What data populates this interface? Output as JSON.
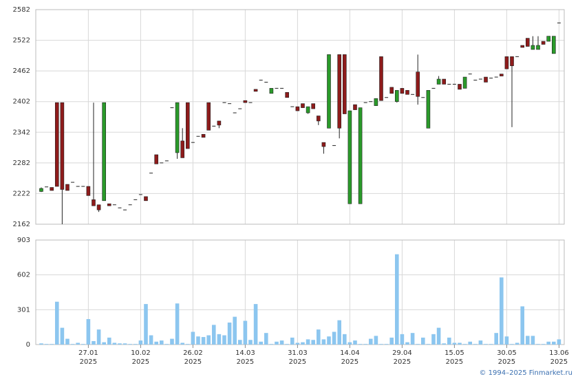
{
  "chart_data": [
    {
      "type": "candlestick",
      "up_color": "#2a9a2a",
      "down_color": "#8e1b1b",
      "grid": true,
      "xlim": [
        -1.05,
        100
      ],
      "ylim": [
        2162,
        2582
      ],
      "yticks": [
        2162,
        2222,
        2282,
        2342,
        2402,
        2462,
        2522,
        2582
      ],
      "open": [
        2226,
        2235,
        2234,
        2400,
        2400,
        2240,
        2244,
        2236,
        2236,
        2236,
        2210,
        2200,
        2208,
        2202,
        2200,
        2194,
        2190,
        2200,
        2210,
        2220,
        2216,
        2262,
        2298,
        2282,
        2286,
        2390,
        2302,
        2325,
        2400,
        2322,
        2334,
        2338,
        2400,
        2354,
        2364,
        2400,
        2398,
        2380,
        2388,
        2404,
        2400,
        2426,
        2444,
        2440,
        2418,
        2428,
        2428,
        2420,
        2392,
        2392,
        2398,
        2380,
        2398,
        2374,
        2322,
        2350,
        2316,
        2494,
        2494,
        2202,
        2396,
        2202,
        2400,
        2402,
        2394,
        2490,
        2410,
        2430,
        2402,
        2428,
        2424,
        2416,
        2460,
        2410,
        2350,
        2428,
        2436,
        2446,
        2436,
        2436,
        2436,
        2428,
        2456,
        2444,
        2446,
        2450,
        2448,
        2450,
        2456,
        2490,
        2490,
        2490,
        2512,
        2526,
        2504,
        2504,
        2520,
        2520,
        2496,
        2556
      ],
      "high": [
        2234,
        2235,
        2234,
        2400,
        2400,
        2240,
        2244,
        2236,
        2236,
        2236,
        2400,
        2200,
        2400,
        2202,
        2200,
        2194,
        2190,
        2200,
        2210,
        2220,
        2216,
        2262,
        2298,
        2282,
        2286,
        2390,
        2400,
        2350,
        2400,
        2322,
        2334,
        2338,
        2400,
        2354,
        2364,
        2400,
        2398,
        2380,
        2388,
        2404,
        2400,
        2426,
        2444,
        2440,
        2428,
        2428,
        2428,
        2420,
        2392,
        2392,
        2398,
        2392,
        2398,
        2374,
        2322,
        2494,
        2316,
        2494,
        2494,
        2384,
        2396,
        2390,
        2400,
        2402,
        2408,
        2490,
        2410,
        2430,
        2424,
        2428,
        2424,
        2416,
        2494,
        2410,
        2424,
        2428,
        2452,
        2446,
        2436,
        2436,
        2436,
        2450,
        2456,
        2444,
        2446,
        2450,
        2448,
        2450,
        2456,
        2490,
        2490,
        2490,
        2512,
        2526,
        2530,
        2530,
        2520,
        2530,
        2530,
        2556
      ],
      "low": [
        2225,
        2235,
        2228,
        2236,
        2162,
        2228,
        2244,
        2236,
        2236,
        2218,
        2198,
        2186,
        2208,
        2198,
        2200,
        2194,
        2190,
        2200,
        2210,
        2220,
        2208,
        2262,
        2280,
        2282,
        2286,
        2390,
        2290,
        2292,
        2310,
        2322,
        2334,
        2332,
        2346,
        2354,
        2350,
        2400,
        2398,
        2380,
        2388,
        2400,
        2400,
        2422,
        2444,
        2440,
        2418,
        2428,
        2428,
        2410,
        2392,
        2384,
        2390,
        2378,
        2388,
        2356,
        2300,
        2350,
        2316,
        2330,
        2378,
        2202,
        2386,
        2202,
        2400,
        2402,
        2394,
        2404,
        2410,
        2418,
        2400,
        2418,
        2416,
        2416,
        2396,
        2410,
        2350,
        2428,
        2436,
        2436,
        2436,
        2436,
        2426,
        2428,
        2456,
        2444,
        2446,
        2440,
        2448,
        2450,
        2452,
        2466,
        2352,
        2490,
        2508,
        2510,
        2504,
        2504,
        2514,
        2520,
        2496,
        2556
      ],
      "close": [
        2232,
        2235,
        2228,
        2236,
        2230,
        2228,
        2244,
        2236,
        2236,
        2218,
        2198,
        2190,
        2400,
        2198,
        2200,
        2194,
        2190,
        2200,
        2210,
        2220,
        2208,
        2262,
        2280,
        2282,
        2286,
        2390,
        2400,
        2292,
        2310,
        2322,
        2334,
        2332,
        2346,
        2354,
        2356,
        2400,
        2398,
        2380,
        2388,
        2400,
        2400,
        2422,
        2444,
        2440,
        2428,
        2428,
        2428,
        2410,
        2392,
        2384,
        2390,
        2392,
        2388,
        2364,
        2314,
        2494,
        2316,
        2350,
        2378,
        2384,
        2386,
        2390,
        2400,
        2402,
        2408,
        2404,
        2410,
        2418,
        2424,
        2418,
        2416,
        2416,
        2412,
        2410,
        2424,
        2428,
        2446,
        2436,
        2436,
        2436,
        2426,
        2450,
        2456,
        2444,
        2446,
        2440,
        2448,
        2450,
        2452,
        2466,
        2472,
        2490,
        2508,
        2510,
        2512,
        2512,
        2514,
        2530,
        2530,
        2556
      ]
    },
    {
      "type": "bar",
      "color": "#8cc6ef",
      "grid": true,
      "xlim": [
        -1.05,
        100
      ],
      "ylim": [
        0,
        903
      ],
      "yticks": [
        0,
        301,
        602,
        903
      ],
      "xticks": [
        {
          "value": 9,
          "label": "27.01",
          "year": "2025"
        },
        {
          "value": 19,
          "label": "10.02",
          "year": "2025"
        },
        {
          "value": 29,
          "label": "26.02",
          "year": "2025"
        },
        {
          "value": 39,
          "label": "14.03",
          "year": "2025"
        },
        {
          "value": 49,
          "label": "31.03",
          "year": "2025"
        },
        {
          "value": 59,
          "label": "14.04",
          "year": "2025"
        },
        {
          "value": 69,
          "label": "29.04",
          "year": "2025"
        },
        {
          "value": 79,
          "label": "15.05",
          "year": "2025"
        },
        {
          "value": 89,
          "label": "30.05",
          "year": "2025"
        },
        {
          "value": 99,
          "label": "13.06",
          "year": "2025"
        }
      ],
      "values": [
        10,
        5,
        5,
        370,
        145,
        50,
        5,
        15,
        5,
        220,
        30,
        130,
        20,
        60,
        15,
        10,
        10,
        5,
        5,
        35,
        350,
        80,
        25,
        35,
        5,
        50,
        355,
        15,
        5,
        110,
        70,
        65,
        80,
        170,
        90,
        80,
        190,
        240,
        40,
        205,
        40,
        350,
        25,
        100,
        5,
        25,
        35,
        5,
        60,
        15,
        20,
        45,
        40,
        130,
        45,
        70,
        110,
        210,
        90,
        20,
        35,
        5,
        5,
        50,
        75,
        5,
        5,
        60,
        780,
        90,
        20,
        100,
        5,
        60,
        5,
        90,
        145,
        10,
        60,
        15,
        15,
        5,
        25,
        5,
        35,
        5,
        5,
        100,
        580,
        70,
        5,
        15,
        330,
        75,
        75,
        5,
        5,
        25,
        25,
        45
      ]
    }
  ],
  "footer": "© 1994–2025 Finmarket.ru"
}
